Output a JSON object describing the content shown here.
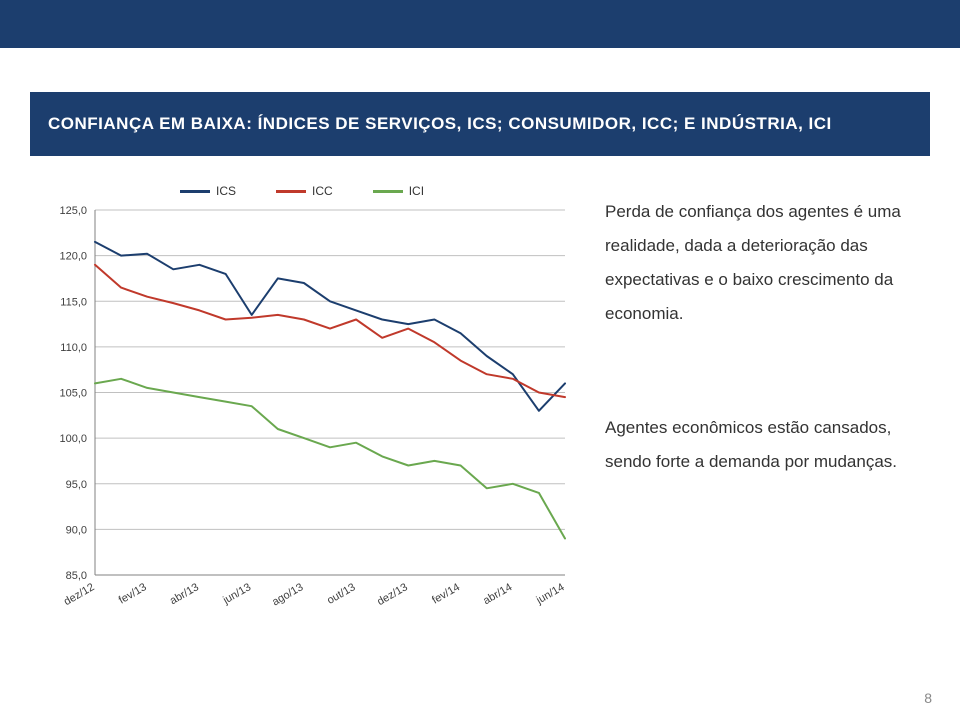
{
  "header": {
    "title": "CONFIANÇA EM BAIXA: ÍNDICES DE SERVIÇOS, ICS; CONSUMIDOR, ICC; E INDÚSTRIA, ICI"
  },
  "page_number": "8",
  "text": {
    "p1": "Perda de confiança dos agentes é uma realidade, dada a deterioração das expectativas e o baixo crescimento da economia.",
    "p2": "Agentes econômicos estão cansados, sendo forte a demanda por mudanças."
  },
  "chart": {
    "type": "line",
    "background_color": "#ffffff",
    "grid_color": "#c0c0c0",
    "axis_color": "#808080",
    "label_fontsize": 11,
    "label_color": "#404040",
    "ylim": [
      85,
      125
    ],
    "ytick_step": 5,
    "yticks": [
      "85,0",
      "90,0",
      "95,0",
      "100,0",
      "105,0",
      "110,0",
      "115,0",
      "120,0",
      "125,0"
    ],
    "x_labels": [
      "dez/12",
      "fev/13",
      "abr/13",
      "jun/13",
      "ago/13",
      "out/13",
      "dez/13",
      "fev/14",
      "abr/14",
      "jun/14"
    ],
    "x_label_rotation": -30,
    "n_points": 19,
    "line_width": 2,
    "legend": {
      "position": "top",
      "items": [
        "ICS",
        "ICC",
        "ICI"
      ]
    },
    "series": {
      "ICS": {
        "color": "#1c3e6e",
        "values": [
          121.5,
          120.0,
          120.2,
          118.5,
          119.0,
          118.0,
          113.5,
          117.5,
          117.0,
          115.0,
          114.0,
          113.0,
          112.5,
          113.0,
          111.5,
          109.0,
          107.0,
          103.0,
          106.0
        ]
      },
      "ICC": {
        "color": "#c0392b",
        "values": [
          119.0,
          116.5,
          115.5,
          114.8,
          114.0,
          113.0,
          113.2,
          113.5,
          113.0,
          112.0,
          113.0,
          111.0,
          112.0,
          110.5,
          108.5,
          107.0,
          106.5,
          105.0,
          104.5
        ]
      },
      "ICI": {
        "color": "#6aa84f",
        "values": [
          106.0,
          106.5,
          105.5,
          105.0,
          104.5,
          104.0,
          103.5,
          101.0,
          100.0,
          99.0,
          99.5,
          98.0,
          97.0,
          97.5,
          97.0,
          94.5,
          95.0,
          94.0,
          89.0
        ]
      }
    }
  }
}
